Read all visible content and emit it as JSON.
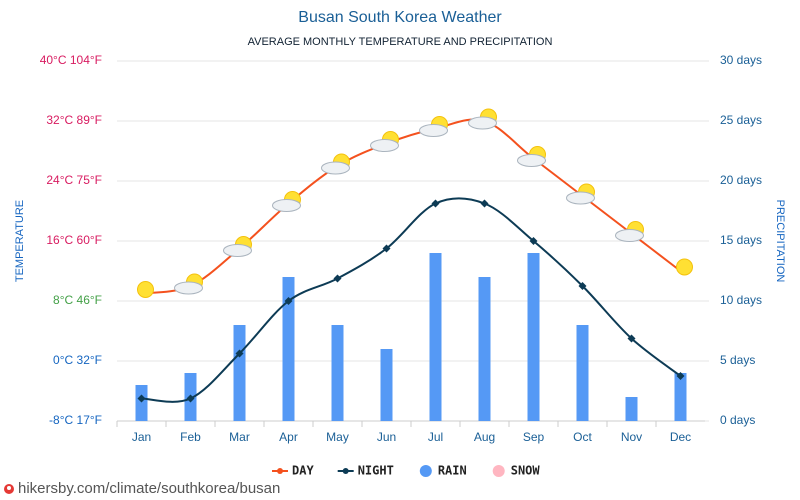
{
  "chart_data": {
    "type": "line",
    "title": "Busan South Korea Weather",
    "subtitle": "AVERAGE MONTHLY TEMPERATURE AND PRECIPITATION",
    "y_label": "TEMPERATURE",
    "y2_label": "PRECIPITATION",
    "source": "hikersby.com/climate/southkorea/busan",
    "categories": [
      "Jan",
      "Feb",
      "Mar",
      "Apr",
      "May",
      "Jun",
      "Jul",
      "Aug",
      "Sep",
      "Oct",
      "Nov",
      "Dec"
    ],
    "ylim": [
      -8,
      40
    ],
    "yticks": [
      {
        "value": -8,
        "label": "-8°C 17°F",
        "color": "#1565c0"
      },
      {
        "value": 0,
        "label": "0°C 32°F",
        "color": "#1565c0"
      },
      {
        "value": 8,
        "label": "8°C 46°F",
        "color": "#43a047"
      },
      {
        "value": 16,
        "label": "16°C 60°F",
        "color": "#d81b60"
      },
      {
        "value": 24,
        "label": "24°C 75°F",
        "color": "#d81b60"
      },
      {
        "value": 32,
        "label": "32°C 89°F",
        "color": "#d81b60"
      },
      {
        "value": 40,
        "label": "40°C 104°F",
        "color": "#d81b60"
      }
    ],
    "y2lim": [
      0,
      30
    ],
    "y2ticks": [
      {
        "value": 0,
        "label": "0 days"
      },
      {
        "value": 5,
        "label": "5 days"
      },
      {
        "value": 10,
        "label": "10 days"
      },
      {
        "value": 15,
        "label": "15 days"
      },
      {
        "value": 20,
        "label": "20 days"
      },
      {
        "value": 25,
        "label": "25 days"
      },
      {
        "value": 30,
        "label": "30 days"
      }
    ],
    "grid": true,
    "series": [
      {
        "name": "DAY",
        "type": "line",
        "color": "#f4511e",
        "values": [
          9,
          10,
          15,
          21,
          26,
          29,
          31,
          32,
          27,
          22,
          17,
          12
        ]
      },
      {
        "name": "NIGHT",
        "type": "line",
        "color": "#0d3b55",
        "values": [
          -5,
          -5,
          1,
          8,
          11,
          15,
          21,
          21,
          16,
          10,
          3,
          -2
        ]
      },
      {
        "name": "RAIN",
        "type": "bar",
        "axis": "y2",
        "color": "#5599f5",
        "values": [
          3,
          4,
          8,
          12,
          8,
          6,
          14,
          12,
          14,
          8,
          2,
          4
        ]
      },
      {
        "name": "SNOW",
        "type": "bar",
        "axis": "y2",
        "color": "#ffb6c1",
        "values": [
          null,
          null,
          null,
          null,
          null,
          null,
          null,
          null,
          null,
          null,
          null,
          null
        ]
      }
    ]
  }
}
